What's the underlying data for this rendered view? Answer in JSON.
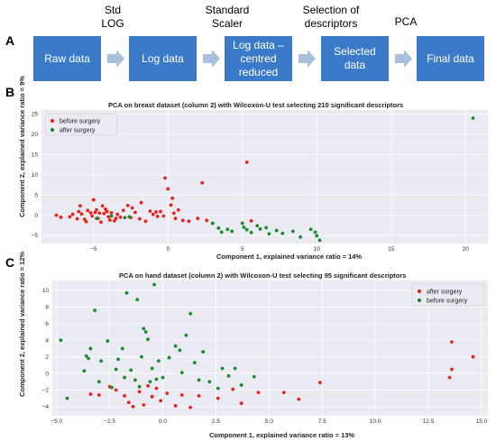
{
  "panels": {
    "a": "A",
    "b": "B",
    "c": "C"
  },
  "flow": {
    "boxes": [
      {
        "label": "Raw data"
      },
      {
        "label": "Log data"
      },
      {
        "label": "Log data –\ncentred\nreduced"
      },
      {
        "label": "Selected\ndata"
      },
      {
        "label": "Final data"
      }
    ],
    "steps": [
      {
        "label": "Std\nLOG"
      },
      {
        "label": "Standard\nScaler"
      },
      {
        "label": "Selection of\ndescriptors"
      },
      {
        "label": "PCA"
      }
    ],
    "colors": {
      "box": "#3a7ac8",
      "arrow": "#a9c0dc"
    }
  },
  "chart_data": [
    {
      "type": "scatter",
      "title": "PCA on breast dataset (column 2) with Wilcoxon-U test selecting 210 significant descriptors",
      "xlabel": "Component 1, explained variance ratio = 14%",
      "ylabel": "Component 2, explained variance ratio = 9%",
      "xlim": [
        -8.5,
        21.5
      ],
      "ylim": [
        -7,
        26
      ],
      "xticks": [
        -5,
        0,
        5,
        10,
        15,
        20
      ],
      "yticks": [
        -5,
        0,
        5,
        10,
        15,
        20,
        25
      ],
      "grid": true,
      "legend": "top-left",
      "series": [
        {
          "name": "before surgery",
          "color": "#e8231e",
          "points": [
            [
              -7.5,
              0
            ],
            [
              -7.2,
              -0.5
            ],
            [
              -6.6,
              -0.4
            ],
            [
              -6.4,
              0.2
            ],
            [
              -6.1,
              -0.9
            ],
            [
              -6,
              0.9
            ],
            [
              -5.9,
              2.3
            ],
            [
              -5.8,
              0.3
            ],
            [
              -5.6,
              -1
            ],
            [
              -5.5,
              -1.6
            ],
            [
              -5.4,
              1.2
            ],
            [
              -5.2,
              0.6
            ],
            [
              -5.1,
              -0.2
            ],
            [
              -5,
              3.8
            ],
            [
              -4.9,
              0.7
            ],
            [
              -4.8,
              1.3
            ],
            [
              -4.7,
              -0.8
            ],
            [
              -4.6,
              0.5
            ],
            [
              -4.5,
              -1.7
            ],
            [
              -4.4,
              2.3
            ],
            [
              -4.3,
              0.4
            ],
            [
              -4.2,
              1.5
            ],
            [
              -4.1,
              0.9
            ],
            [
              -4,
              -0.4
            ],
            [
              -3.9,
              -1.2
            ],
            [
              -3.8,
              0.6
            ],
            [
              -3.6,
              -1.4
            ],
            [
              -3.5,
              -0.8
            ],
            [
              -3.4,
              0.2
            ],
            [
              -3.2,
              -0.5
            ],
            [
              -3,
              1.2
            ],
            [
              -2.7,
              2.4
            ],
            [
              -2.5,
              -0.6
            ],
            [
              -2.4,
              1.8
            ],
            [
              -2.2,
              0.7
            ],
            [
              -1.9,
              -0.9
            ],
            [
              -1.8,
              3.1
            ],
            [
              -1.5,
              -1.5
            ],
            [
              -1.2,
              1
            ],
            [
              -1,
              0.2
            ],
            [
              -0.8,
              0.8
            ],
            [
              -0.7,
              -0.3
            ],
            [
              -0.5,
              0.9
            ],
            [
              -0.3,
              -0.2
            ],
            [
              -0.2,
              9.2
            ],
            [
              0,
              6.5
            ],
            [
              0.2,
              2.5
            ],
            [
              0.3,
              4.2
            ],
            [
              0.4,
              0.5
            ],
            [
              0.5,
              -0.8
            ],
            [
              0.7,
              1.3
            ],
            [
              1,
              -1.3
            ],
            [
              1.4,
              -1.5
            ],
            [
              2,
              -0.8
            ],
            [
              2.3,
              8
            ],
            [
              2.6,
              -1.3
            ],
            [
              5.3,
              13.1
            ],
            [
              5.6,
              -1.4
            ]
          ]
        },
        {
          "name": "after surgery",
          "color": "#1a8a2e",
          "points": [
            [
              -4.8,
              -0.8
            ],
            [
              -3.8,
              -0.2
            ],
            [
              -2.9,
              -0.6
            ],
            [
              -2.6,
              -0.4
            ],
            [
              3,
              -2
            ],
            [
              3.4,
              -3.2
            ],
            [
              3.6,
              -4.2
            ],
            [
              4,
              -3.5
            ],
            [
              4.3,
              -4
            ],
            [
              5,
              -2
            ],
            [
              5.1,
              -3
            ],
            [
              5.3,
              -3.6
            ],
            [
              5.6,
              -4.3
            ],
            [
              6,
              -2.6
            ],
            [
              6.2,
              -3.4
            ],
            [
              6.6,
              -3.1
            ],
            [
              6.8,
              -4.6
            ],
            [
              7.3,
              -3.8
            ],
            [
              7.7,
              -4.5
            ],
            [
              8.4,
              -4
            ],
            [
              8.9,
              -5.4
            ],
            [
              9.6,
              -3.5
            ],
            [
              9.9,
              -4.2
            ],
            [
              10,
              -5.1
            ],
            [
              10.2,
              -6.2
            ],
            [
              20.5,
              24
            ]
          ]
        }
      ]
    },
    {
      "type": "scatter",
      "title": "PCA on hand dataset (column 2) with Wilcoxon-U test selecting 95 significant descriptors",
      "xlabel": "Component 1, explained variance ratio = 13%",
      "ylabel": "Component 2, explained variance ratio = 12%",
      "xlim": [
        -5.2,
        15.3
      ],
      "ylim": [
        -5.1,
        11.2
      ],
      "xticks": [
        -5.0,
        -2.5,
        0.0,
        2.5,
        5.0,
        7.5,
        10.0,
        12.5,
        15.0
      ],
      "yticks": [
        -4,
        -2,
        0,
        2,
        4,
        6,
        8,
        10
      ],
      "tick_labels_x": [
        "−5.0",
        "−2.5",
        "0.0",
        "2.5",
        "5.0",
        "7.5",
        "10.0",
        "12.5",
        "15.0"
      ],
      "grid": true,
      "legend": "top-right",
      "series": [
        {
          "name": "after surgery",
          "color": "#e8231e",
          "points": [
            [
              -3.4,
              -2.5
            ],
            [
              -3,
              -2.6
            ],
            [
              -2.5,
              -1.6
            ],
            [
              -2.2,
              -2
            ],
            [
              -1.8,
              -2.7
            ],
            [
              -1.6,
              -3.5
            ],
            [
              -1.4,
              -4
            ],
            [
              -1.1,
              -2.2
            ],
            [
              -0.9,
              -3.8
            ],
            [
              -0.7,
              -1.5
            ],
            [
              -0.5,
              -2.8
            ],
            [
              -0.3,
              -1.8
            ],
            [
              -0.1,
              -3.3
            ],
            [
              0.2,
              -2.4
            ],
            [
              0.6,
              -3.9
            ],
            [
              0.9,
              -2.6
            ],
            [
              1.3,
              -4.1
            ],
            [
              1.7,
              -2.7
            ],
            [
              2.6,
              -3
            ],
            [
              3.3,
              -1.9
            ],
            [
              3.7,
              -3.6
            ],
            [
              4.5,
              -2.3
            ],
            [
              5.7,
              -2.3
            ],
            [
              6.4,
              -3.1
            ],
            [
              7.4,
              -1.1
            ],
            [
              13.5,
              -0.5
            ],
            [
              13.6,
              0.5
            ],
            [
              13.6,
              3.8
            ],
            [
              14.6,
              2
            ]
          ]
        },
        {
          "name": "before surgery",
          "color": "#1a8a2e",
          "points": [
            [
              -4.8,
              4
            ],
            [
              -4.5,
              -3
            ],
            [
              -3.7,
              0.3
            ],
            [
              -3.6,
              2.1
            ],
            [
              -3.5,
              1.8
            ],
            [
              -3.4,
              3
            ],
            [
              -3.2,
              7.6
            ],
            [
              -3,
              -1
            ],
            [
              -2.9,
              1.5
            ],
            [
              -2.6,
              3.9
            ],
            [
              -2.4,
              -1.7
            ],
            [
              -2.2,
              0.5
            ],
            [
              -2.1,
              1.7
            ],
            [
              -1.9,
              3
            ],
            [
              -1.8,
              -0.5
            ],
            [
              -1.7,
              9.7
            ],
            [
              -1.5,
              0.4
            ],
            [
              -1.3,
              -0.8
            ],
            [
              -1.2,
              8.9
            ],
            [
              -1.1,
              -1.6
            ],
            [
              -1,
              2
            ],
            [
              -0.9,
              5.4
            ],
            [
              -0.8,
              5
            ],
            [
              -0.7,
              4.1
            ],
            [
              -0.6,
              -1
            ],
            [
              -0.5,
              0.6
            ],
            [
              -0.4,
              10.7
            ],
            [
              -0.3,
              -0.7
            ],
            [
              -0.2,
              1.5
            ],
            [
              0,
              -0.5
            ],
            [
              0.3,
              1.9
            ],
            [
              0.6,
              3.3
            ],
            [
              0.8,
              2.8
            ],
            [
              0.9,
              0.1
            ],
            [
              1.1,
              4.6
            ],
            [
              1.3,
              7.2
            ],
            [
              1.5,
              1.3
            ],
            [
              1.7,
              -0.8
            ],
            [
              1.9,
              2.6
            ],
            [
              2.2,
              -1
            ],
            [
              2.6,
              -1.8
            ],
            [
              2.8,
              0.6
            ],
            [
              3.1,
              -0.3
            ],
            [
              3.4,
              0.6
            ],
            [
              3.7,
              -1.4
            ],
            [
              4.3,
              -0.4
            ]
          ]
        }
      ]
    }
  ]
}
